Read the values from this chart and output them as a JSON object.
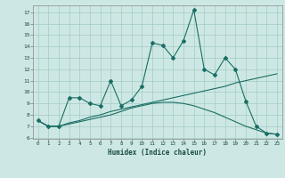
{
  "xlabel": "Humidex (Indice chaleur)",
  "background_color": "#cde8e4",
  "grid_color": "#aacfca",
  "line_color": "#1a6e65",
  "xlim": [
    -0.5,
    23.5
  ],
  "ylim": [
    5.9,
    17.6
  ],
  "yticks": [
    6,
    7,
    8,
    9,
    10,
    11,
    12,
    13,
    14,
    15,
    16,
    17
  ],
  "xticks": [
    0,
    1,
    2,
    3,
    4,
    5,
    6,
    7,
    8,
    9,
    10,
    11,
    12,
    13,
    14,
    15,
    16,
    17,
    18,
    19,
    20,
    21,
    22,
    23
  ],
  "line1_x": [
    0,
    1,
    2,
    3,
    4,
    5,
    6,
    7,
    8,
    9,
    10,
    11,
    12,
    13,
    14,
    15,
    16,
    17,
    18,
    19,
    20,
    21,
    22,
    23
  ],
  "line1_y": [
    7.5,
    7.0,
    7.0,
    9.5,
    9.5,
    9.0,
    8.8,
    11.0,
    8.8,
    9.3,
    10.5,
    14.3,
    14.1,
    13.0,
    14.5,
    17.2,
    12.0,
    11.5,
    13.0,
    12.0,
    9.2,
    7.0,
    6.4,
    6.3
  ],
  "line2_x": [
    0,
    1,
    2,
    3,
    4,
    5,
    6,
    7,
    8,
    9,
    10,
    11,
    12,
    13,
    14,
    15,
    16,
    17,
    18,
    19,
    20,
    21,
    22,
    23
  ],
  "line2_y": [
    7.5,
    7.0,
    7.0,
    7.3,
    7.5,
    7.8,
    8.0,
    8.3,
    8.5,
    8.7,
    8.9,
    9.1,
    9.3,
    9.5,
    9.7,
    9.9,
    10.1,
    10.3,
    10.5,
    10.8,
    11.0,
    11.2,
    11.4,
    11.6
  ],
  "line3_x": [
    0,
    1,
    2,
    3,
    4,
    5,
    6,
    7,
    8,
    9,
    10,
    11,
    12,
    13,
    14,
    15,
    16,
    17,
    18,
    19,
    20,
    21,
    22,
    23
  ],
  "line3_y": [
    7.5,
    7.0,
    7.0,
    7.2,
    7.4,
    7.6,
    7.8,
    8.0,
    8.3,
    8.6,
    8.8,
    9.0,
    9.1,
    9.1,
    9.0,
    8.8,
    8.5,
    8.2,
    7.8,
    7.4,
    7.0,
    6.7,
    6.4,
    6.3
  ]
}
